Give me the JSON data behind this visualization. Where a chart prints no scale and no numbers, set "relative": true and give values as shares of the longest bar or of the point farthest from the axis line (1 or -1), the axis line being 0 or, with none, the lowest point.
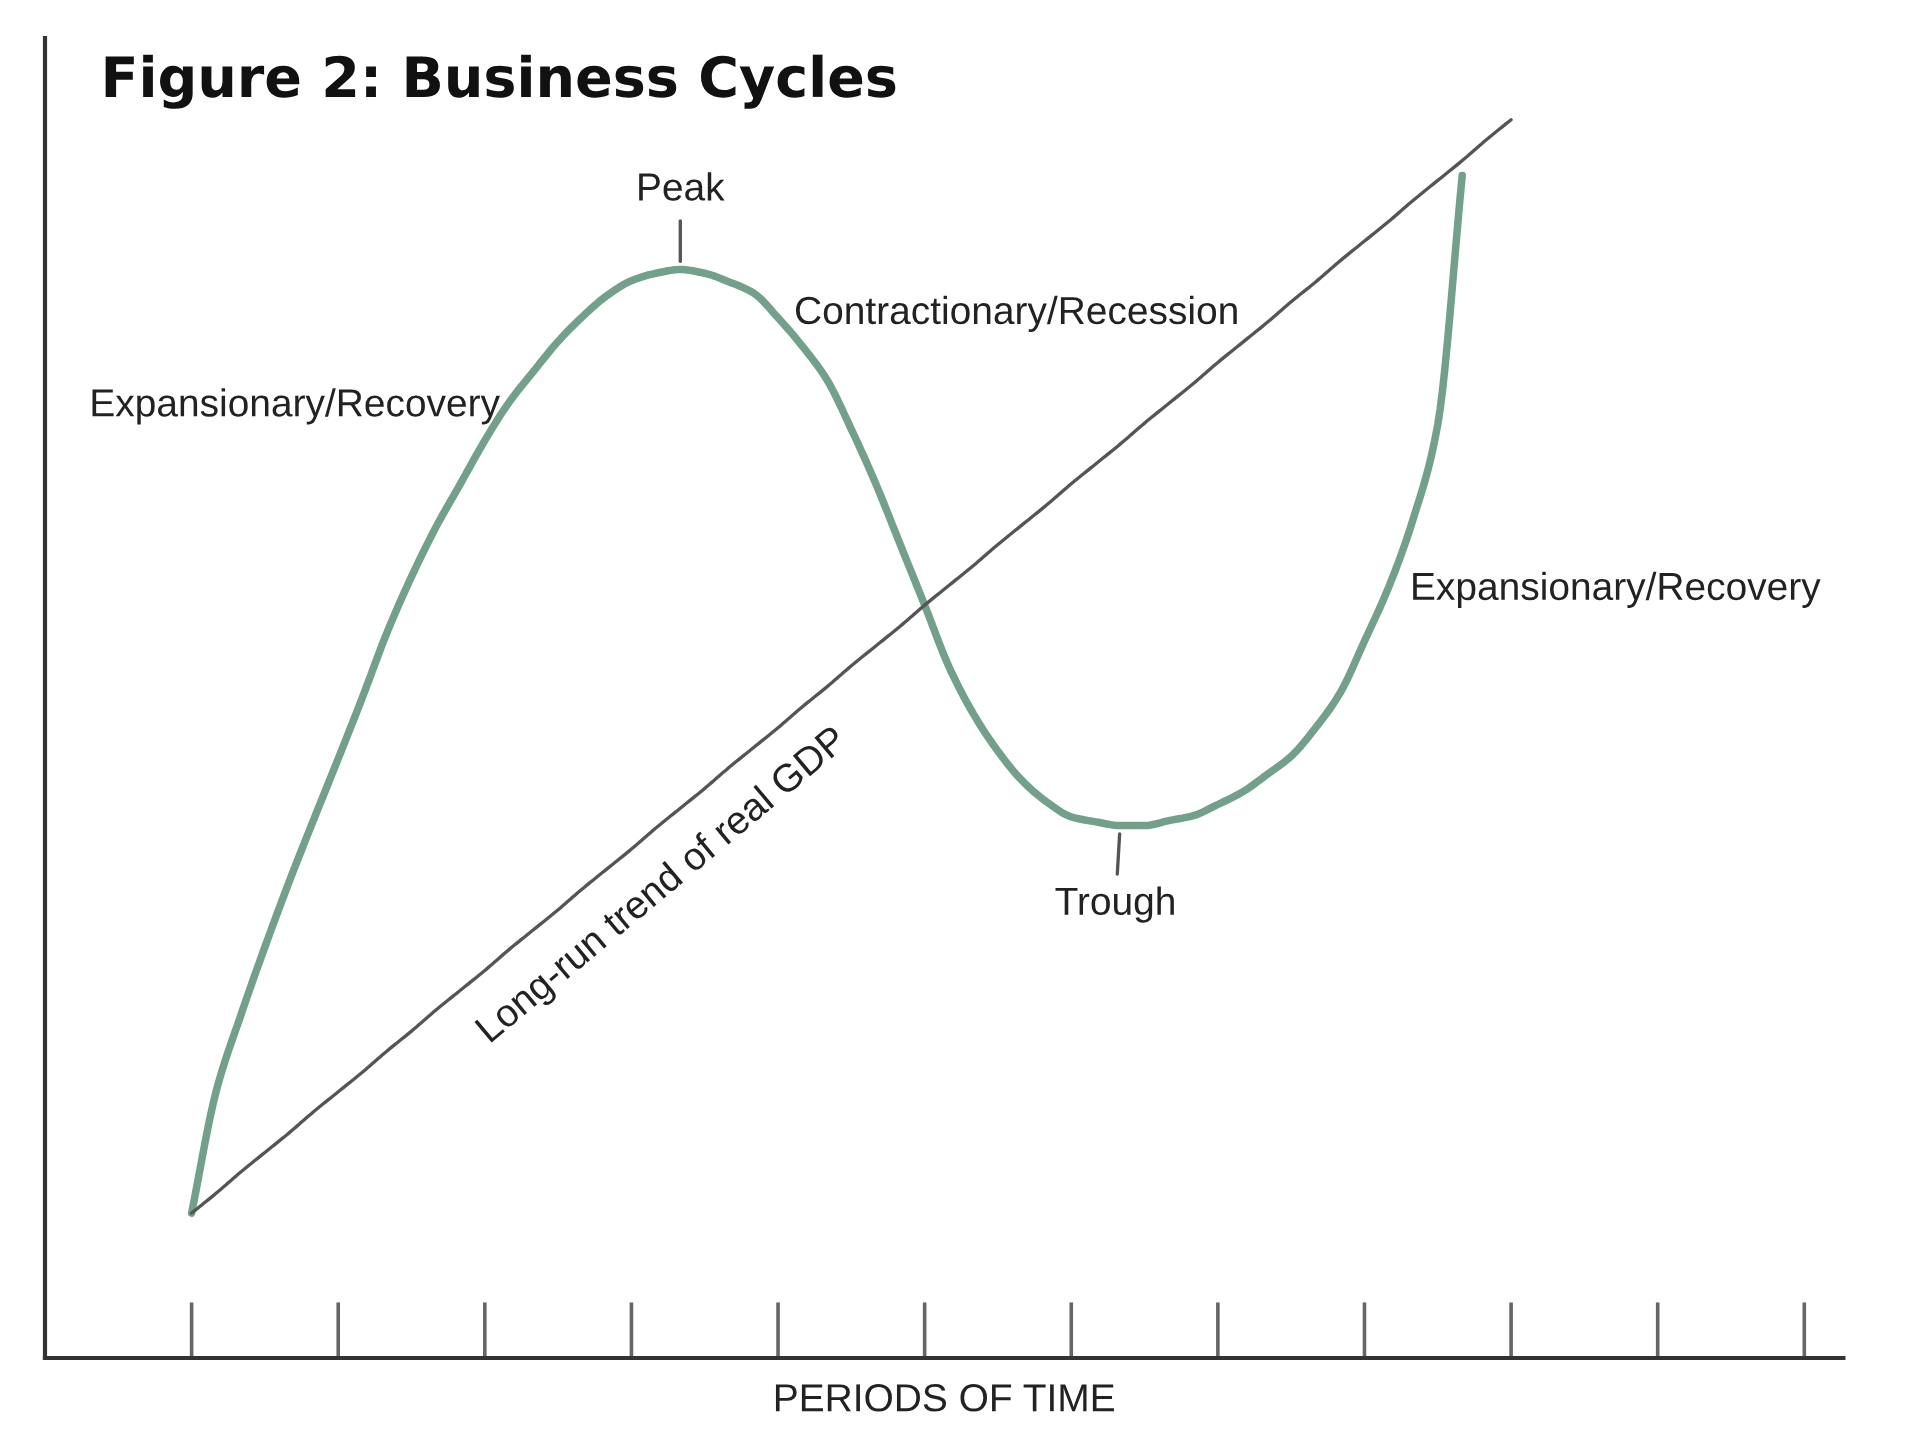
{
  "chart_data": {
    "type": "line",
    "title": "Figure 2: Business Cycles",
    "xlabel": "PERIODS OF TIME",
    "relative": true,
    "tick_labels": false,
    "categories": [
      null,
      null,
      null,
      null,
      null,
      null,
      null,
      null,
      null,
      null,
      null,
      null,
      null,
      null,
      null,
      null,
      null,
      null,
      null,
      null,
      null,
      null,
      null,
      null,
      null,
      null,
      null,
      null,
      null,
      null,
      null,
      null,
      null,
      null,
      null,
      null,
      null,
      null,
      null,
      null,
      null,
      null,
      null,
      null,
      null,
      null,
      null,
      null,
      null,
      null,
      null,
      null,
      null,
      null,
      null,
      null,
      null,
      null,
      null,
      null,
      null,
      null,
      null,
      null,
      null,
      null,
      null
    ],
    "series": [
      {
        "color": "#73a08a",
        "values": [
          0.117,
          0.215,
          0.276,
          0.332,
          0.385,
          0.435,
          0.484,
          0.534,
          0.586,
          0.631,
          0.671,
          0.706,
          0.741,
          0.772,
          0.797,
          0.821,
          0.841,
          0.858,
          0.87,
          0.876,
          0.879,
          0.876,
          0.869,
          0.86,
          0.84,
          0.817,
          0.79,
          0.75,
          0.706,
          0.657,
          0.608,
          0.558,
          0.52,
          0.49,
          0.466,
          0.449,
          0.437,
          0.433,
          0.43,
          0.43,
          0.434,
          0.438,
          0.447,
          0.457,
          0.471,
          0.486,
          0.509,
          0.537,
          0.579,
          0.623,
          0.678,
          0.754,
          0.955,
          null,
          null,
          null,
          null,
          null,
          null,
          null,
          null,
          null,
          null,
          null,
          null,
          null,
          null
        ]
      },
      {
        "name": "Long-run trend of real GDP",
        "color": "#555555",
        "values": [
          0.117,
          0.133,
          0.15,
          0.166,
          0.182,
          0.199,
          0.215,
          0.231,
          0.248,
          0.264,
          0.281,
          0.297,
          0.313,
          0.33,
          0.346,
          0.362,
          0.379,
          0.395,
          0.411,
          0.428,
          0.444,
          0.46,
          0.477,
          0.493,
          0.509,
          0.526,
          0.542,
          0.559,
          0.575,
          0.591,
          0.608,
          0.624,
          0.64,
          0.657,
          0.673,
          0.689,
          0.706,
          0.722,
          0.738,
          0.755,
          0.771,
          0.787,
          0.804,
          0.82,
          0.836,
          0.853,
          0.869,
          0.886,
          0.902,
          0.918,
          0.935,
          0.951,
          0.967,
          0.984,
          1.0,
          null,
          null,
          null,
          null,
          null,
          null,
          null,
          null,
          null,
          null,
          null,
          null
        ]
      }
    ],
    "annotations": [
      {
        "text": "Peak",
        "y": 0.879
      },
      "Contractionary/Recession",
      "Expansionary/Recovery",
      "Expansionary/Recovery",
      {
        "text": "Trough",
        "y": 0.43
      }
    ]
  }
}
